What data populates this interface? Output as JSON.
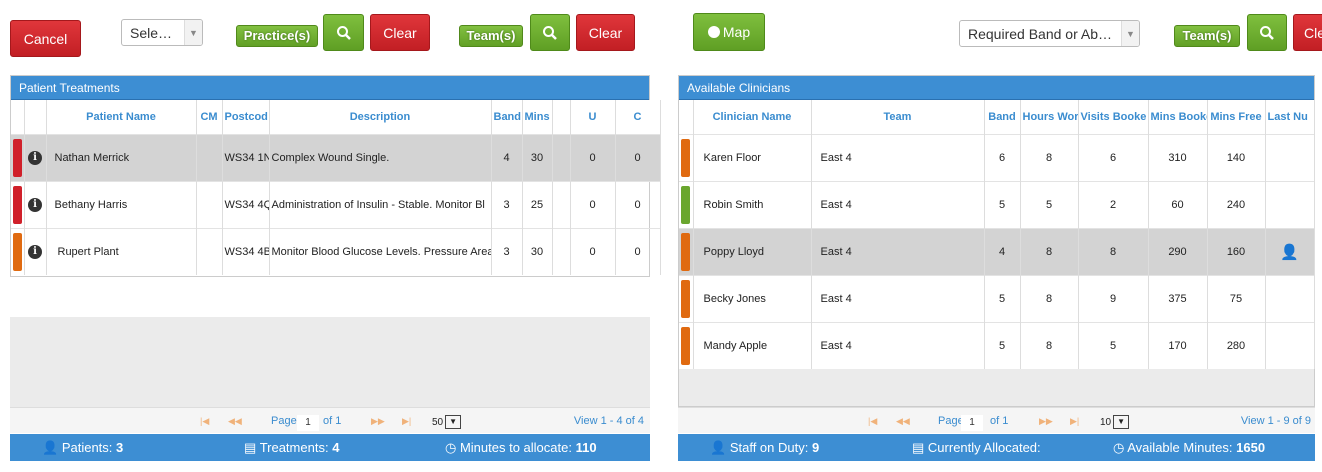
{
  "left_toolbar": {
    "cancel": "Cancel",
    "select": "Sele…",
    "practice": "Practice(s)",
    "clear1": "Clear",
    "team": "Team(s)",
    "clear2": "Clear"
  },
  "right_toolbar": {
    "map": "Map",
    "band_select": "Required Band or Ab…",
    "team": "Team(s)",
    "clear": "Cle"
  },
  "treatments": {
    "title": "Patient Treatments",
    "headers": [
      "Patient Name",
      "CM",
      "Postcod",
      "Description",
      "Band",
      "Mins",
      "U",
      "C"
    ],
    "rows": [
      {
        "color": "#d0202a",
        "name": "Nathan Merrick",
        "cm": "",
        "postcode": "WS34 1N",
        "desc": "Complex Wound Single.",
        "band": "4",
        "mins": "30",
        "u": "0",
        "c": "0",
        "selected": true
      },
      {
        "color": "#d0202a",
        "name": "Bethany Harris",
        "cm": "",
        "postcode": "WS34 4Q",
        "desc": "Administration of Insulin - Stable. Monitor Bl",
        "band": "3",
        "mins": "25",
        "u": "0",
        "c": "0",
        "selected": false
      },
      {
        "color": "#e06a10",
        "name": "Rupert Plant",
        "cm": "",
        "postcode": "WS34 4B",
        "desc": "Monitor Blood Glucose Levels. Pressure Area",
        "band": "3",
        "mins": "30",
        "u": "0",
        "c": "0",
        "selected": false
      }
    ],
    "pager": {
      "page_label": "Page",
      "page": "1",
      "of": "of 1",
      "per_page": "50",
      "view": "View 1 - 4 of 4"
    },
    "footer": {
      "patients_label": "Patients:",
      "patients": "3",
      "treatments_label": "Treatments:",
      "treatments": "4",
      "minutes_label": "Minutes to allocate:",
      "minutes": "110"
    }
  },
  "clinicians": {
    "title": "Available Clinicians",
    "headers": [
      "Clinician Name",
      "Team",
      "Band",
      "Hours Wor",
      "Visits Booke",
      "Mins Booke",
      "Mins Free",
      "Last Nu"
    ],
    "rows": [
      {
        "color": "#e06a10",
        "name": "Karen Floor",
        "team": "East 4",
        "band": "6",
        "hours": "8",
        "visits": "6",
        "booked": "310",
        "free": "140",
        "last": false,
        "selected": false
      },
      {
        "color": "#6aa62e",
        "name": "Robin Smith",
        "team": "East 4",
        "band": "5",
        "hours": "5",
        "visits": "2",
        "booked": "60",
        "free": "240",
        "last": false,
        "selected": false
      },
      {
        "color": "#e06a10",
        "name": "Poppy Lloyd",
        "team": "East 4",
        "band": "4",
        "hours": "8",
        "visits": "8",
        "booked": "290",
        "free": "160",
        "last": true,
        "selected": true
      },
      {
        "color": "#e06a10",
        "name": "Becky Jones",
        "team": "East 4",
        "band": "5",
        "hours": "8",
        "visits": "9",
        "booked": "375",
        "free": "75",
        "last": false,
        "selected": false
      },
      {
        "color": "#e06a10",
        "name": "Mandy Apple",
        "team": "East 4",
        "band": "5",
        "hours": "8",
        "visits": "5",
        "booked": "170",
        "free": "280",
        "last": false,
        "selected": false
      }
    ],
    "pager": {
      "page_label": "Page",
      "page": "1",
      "of": "of 1",
      "per_page": "10",
      "view": "View 1 - 9 of 9"
    },
    "footer": {
      "staff_label": "Staff on Duty:",
      "staff": "9",
      "allocated_label": "Currently Allocated:",
      "available_label": "Available Minutes:",
      "available": "1650"
    }
  }
}
